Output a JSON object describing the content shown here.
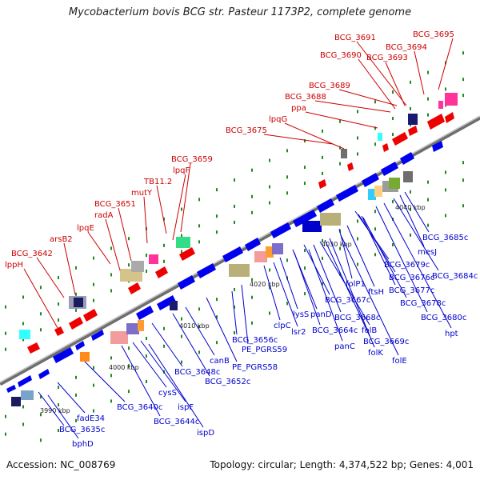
{
  "title": "Mycobacterium bovis BCG str. Pasteur 1173P2, complete genome",
  "footer": {
    "accession": "Accession: NC_008769",
    "stats": "Topology: circular; Length: 4,374,522 bp; Genes: 4,001"
  },
  "colors": {
    "forward_label": "#cc0000",
    "reverse_label": "#0000cc",
    "forward_gene": "#ff0000",
    "reverse_gene": "#0000ff",
    "backbone": "#888888",
    "tick": "#228822"
  },
  "kbp_ticks": [
    {
      "label": "3990 kbp",
      "pos": 3990
    },
    {
      "label": "4000 kbp",
      "pos": 4000
    },
    {
      "label": "4010 kbp",
      "pos": 4010
    },
    {
      "label": "4020 kbp",
      "pos": 4020
    },
    {
      "label": "4030 kbp",
      "pos": 4030
    },
    {
      "label": "4040 kbp",
      "pos": 4040
    }
  ],
  "forward_labels": [
    {
      "text": "lppH"
    },
    {
      "text": "BCG_3642"
    },
    {
      "text": "arsB2"
    },
    {
      "text": "lpqE"
    },
    {
      "text": "radA"
    },
    {
      "text": "BCG_3651"
    },
    {
      "text": "mutY"
    },
    {
      "text": "TB11.2"
    },
    {
      "text": "lpqF"
    },
    {
      "text": "BCG_3659"
    },
    {
      "text": "BCG_3675"
    },
    {
      "text": "lpqG"
    },
    {
      "text": "ppa"
    },
    {
      "text": "BCG_3688"
    },
    {
      "text": "BCG_3689"
    },
    {
      "text": "BCG_3690"
    },
    {
      "text": "BCG_3691"
    },
    {
      "text": "BCG_3693"
    },
    {
      "text": "BCG_3694"
    },
    {
      "text": "BCG_3695"
    }
  ],
  "reverse_labels": [
    {
      "text": "bphD"
    },
    {
      "text": "BCG_3635c"
    },
    {
      "text": "fadE34"
    },
    {
      "text": "BCG_3640c"
    },
    {
      "text": "BCG_3644c"
    },
    {
      "text": "ispD"
    },
    {
      "text": "ispF"
    },
    {
      "text": "cysS"
    },
    {
      "text": "BCG_3648c"
    },
    {
      "text": "BCG_3652c"
    },
    {
      "text": "canB"
    },
    {
      "text": "PE_PGRS58"
    },
    {
      "text": "BCG_3656c"
    },
    {
      "text": "PE_PGRS59"
    },
    {
      "text": "clpC"
    },
    {
      "text": "lsr2"
    },
    {
      "text": "lysS"
    },
    {
      "text": "panD"
    },
    {
      "text": "BCG_3664c"
    },
    {
      "text": "BCG_3667c"
    },
    {
      "text": "panC"
    },
    {
      "text": "folB"
    },
    {
      "text": "BCG_3668c"
    },
    {
      "text": "BCG_3669c"
    },
    {
      "text": "folK"
    },
    {
      "text": "folP1"
    },
    {
      "text": "folE"
    },
    {
      "text": "ftsH"
    },
    {
      "text": "BCG_3676c"
    },
    {
      "text": "BCG_3677c"
    },
    {
      "text": "BCG_3678c"
    },
    {
      "text": "BCG_3679c"
    },
    {
      "text": "BCG_3680c"
    },
    {
      "text": "hpt"
    },
    {
      "text": "BCG_3684c"
    },
    {
      "text": "mesJ"
    },
    {
      "text": "BCG_3685c"
    }
  ]
}
